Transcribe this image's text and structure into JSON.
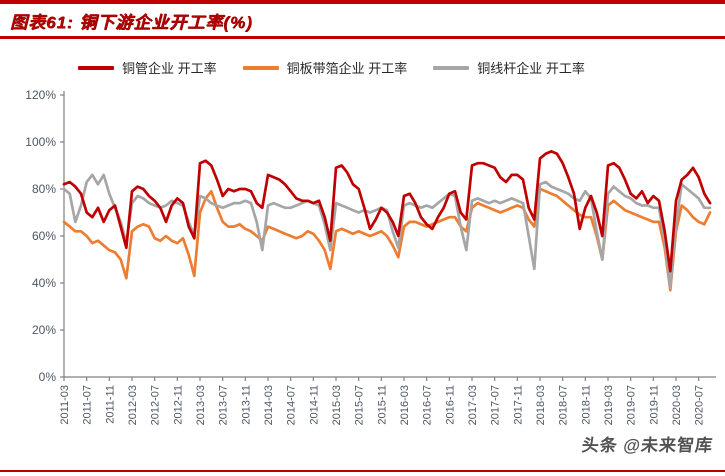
{
  "header": {
    "title": "图表61: 铜下游企业开工率(%)"
  },
  "legend": [
    {
      "label": "铜管企业 开工率",
      "color": "#c00000"
    },
    {
      "label": "铜板带箔企业 开工率",
      "color": "#ed7d31"
    },
    {
      "label": "铜线杆企业 开工率",
      "color": "#a6a6a6"
    }
  ],
  "watermark": "头条 @未来智库",
  "chart_data": {
    "type": "line",
    "title": "铜下游企业开工率(%)",
    "x_start": "2011-03",
    "x_frequency": "monthly",
    "x_end": "2020-09",
    "xlabel": "",
    "ylabel": "",
    "ylim": [
      0,
      120
    ],
    "y_tick_step": 20,
    "y_tick_labels": [
      "0%",
      "20%",
      "40%",
      "60%",
      "80%",
      "100%",
      "120%"
    ],
    "x_tick_every_n_points": 4,
    "x_tick_labels": [
      "2011-03",
      "2011-07",
      "2011-11",
      "2012-03",
      "2012-07",
      "2012-11",
      "2013-03",
      "2013-07",
      "2013-11",
      "2014-03",
      "2014-07",
      "2014-11",
      "2015-03",
      "2015-07",
      "2015-11",
      "2016-03",
      "2016-07",
      "2016-11",
      "2017-03",
      "2017-07",
      "2017-11",
      "2018-03",
      "2018-07",
      "2018-11",
      "2019-03",
      "2019-07",
      "2019-11",
      "2020-03",
      "2020-07"
    ],
    "grid": false,
    "legend_position": "top",
    "axis_color": "#808080",
    "series": [
      {
        "name": "铜管企业 开工率",
        "color": "#c00000",
        "values": [
          82,
          83,
          81,
          78,
          70,
          68,
          72,
          66,
          71,
          73,
          64,
          55,
          79,
          81,
          80,
          77,
          75,
          72,
          66,
          73,
          76,
          74,
          64,
          59,
          91,
          92,
          90,
          84,
          77,
          80,
          79,
          80,
          80,
          79,
          74,
          72,
          86,
          85,
          84,
          82,
          79,
          76,
          75,
          75,
          74,
          75,
          68,
          58,
          89,
          90,
          87,
          82,
          80,
          72,
          63,
          67,
          72,
          70,
          66,
          60,
          77,
          78,
          74,
          68,
          65,
          63,
          68,
          72,
          78,
          79,
          70,
          67,
          90,
          91,
          91,
          90,
          89,
          85,
          83,
          86,
          86,
          84,
          72,
          67,
          93,
          95,
          96,
          95,
          91,
          85,
          78,
          63,
          72,
          77,
          70,
          60,
          90,
          91,
          89,
          84,
          78,
          76,
          79,
          74,
          77,
          75,
          62,
          45,
          75,
          84,
          86,
          89,
          85,
          78,
          74
        ]
      },
      {
        "name": "铜板带箔企业 开工率",
        "color": "#ed7d31",
        "values": [
          66,
          64,
          62,
          62,
          60,
          57,
          58,
          56,
          54,
          53,
          50,
          42,
          62,
          64,
          65,
          64,
          59,
          58,
          60,
          58,
          57,
          59,
          52,
          43,
          70,
          76,
          79,
          72,
          66,
          64,
          64,
          65,
          63,
          62,
          60,
          58,
          64,
          63,
          62,
          61,
          60,
          59,
          60,
          62,
          61,
          58,
          54,
          46,
          62,
          63,
          62,
          61,
          62,
          61,
          60,
          61,
          62,
          60,
          56,
          51,
          64,
          66,
          66,
          65,
          64,
          65,
          66,
          67,
          68,
          68,
          64,
          62,
          72,
          74,
          73,
          72,
          71,
          70,
          71,
          72,
          73,
          72,
          67,
          64,
          80,
          79,
          78,
          77,
          75,
          73,
          71,
          69,
          68,
          68,
          60,
          50,
          73,
          75,
          73,
          71,
          70,
          69,
          68,
          67,
          66,
          66,
          55,
          37,
          62,
          73,
          71,
          68,
          66,
          65,
          70
        ]
      },
      {
        "name": "铜线杆企业 开工率",
        "color": "#a6a6a6",
        "values": [
          80,
          78,
          66,
          73,
          83,
          86,
          82,
          86,
          78,
          72,
          66,
          57,
          74,
          77,
          76,
          74,
          73,
          72,
          73,
          75,
          74,
          73,
          66,
          60,
          77,
          76,
          74,
          73,
          72,
          73,
          74,
          74,
          75,
          74,
          66,
          54,
          73,
          74,
          73,
          72,
          72,
          73,
          74,
          75,
          74,
          73,
          65,
          54,
          74,
          73,
          72,
          71,
          70,
          71,
          70,
          71,
          72,
          71,
          62,
          55,
          73,
          74,
          73,
          72,
          73,
          72,
          74,
          76,
          78,
          77,
          64,
          54,
          75,
          76,
          75,
          74,
          75,
          74,
          75,
          76,
          75,
          74,
          60,
          46,
          82,
          83,
          81,
          80,
          79,
          78,
          76,
          75,
          79,
          76,
          62,
          50,
          78,
          81,
          79,
          77,
          76,
          74,
          73,
          73,
          72,
          72,
          58,
          38,
          65,
          82,
          80,
          78,
          76,
          72,
          72
        ]
      }
    ]
  }
}
